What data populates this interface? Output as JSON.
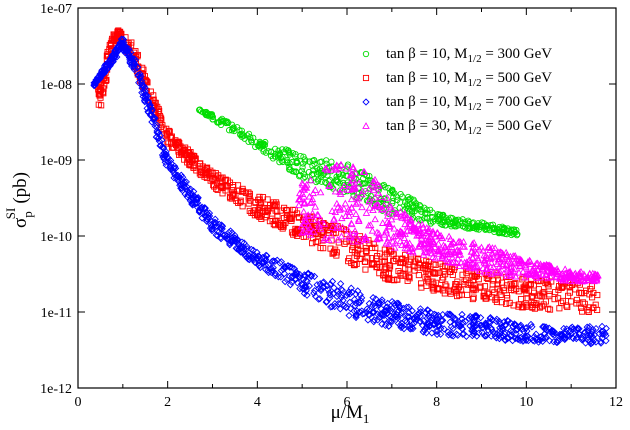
{
  "chart_data": {
    "type": "scatter",
    "xlabel": {
      "main": "μ/M",
      "sub": "1"
    },
    "ylabel": {
      "main": "σ",
      "sup": "SI",
      "sub": "p",
      "unit": "(pb)"
    },
    "xlim": [
      0,
      12
    ],
    "ylim_log10": [
      -12,
      -7
    ],
    "x_ticks": [
      0,
      2,
      4,
      6,
      8,
      10,
      12
    ],
    "y_ticks": [
      {
        "label": "1e-12",
        "exp": -12
      },
      {
        "label": "1e-11",
        "exp": -11
      },
      {
        "label": "1e-10",
        "exp": -10
      },
      {
        "label": "1e-09",
        "exp": -9
      },
      {
        "label": "1e-08",
        "exp": -8
      },
      {
        "label": "1e-07",
        "exp": -7
      }
    ],
    "legend_position": "top-right",
    "series": [
      {
        "name": "tan β = 10,  M",
        "name_sub": "1/2",
        "name_rest": " = 300 GeV",
        "marker": "circle",
        "color": "#00dd00",
        "x_range": [
          2.7,
          9.8
        ],
        "band": [
          [
            2.7,
            -8.3,
            -8.35
          ],
          [
            4.0,
            -8.7,
            -8.85
          ],
          [
            5.0,
            -8.95,
            -9.25
          ],
          [
            6.0,
            -9.05,
            -9.45
          ],
          [
            7.0,
            -9.35,
            -9.75
          ],
          [
            8.0,
            -9.7,
            -9.85
          ],
          [
            9.0,
            -9.82,
            -9.93
          ],
          [
            9.8,
            -9.92,
            -10.0
          ]
        ],
        "count": 480,
        "seed": 11
      },
      {
        "name": "tan β = 10,  M",
        "name_sub": "1/2",
        "name_rest": " = 500 GeV",
        "marker": "square",
        "color": "#ff0000",
        "x_range": [
          0.45,
          11.6
        ],
        "band": [
          [
            0.45,
            -8.0,
            -8.5
          ],
          [
            0.8,
            -7.3,
            -7.45
          ],
          [
            1.0,
            -7.28,
            -7.45
          ],
          [
            1.3,
            -7.55,
            -7.85
          ],
          [
            2.0,
            -8.6,
            -8.8
          ],
          [
            3.0,
            -9.15,
            -9.35
          ],
          [
            4.0,
            -9.45,
            -9.75
          ],
          [
            5.0,
            -9.7,
            -10.05
          ],
          [
            6.0,
            -9.9,
            -10.35
          ],
          [
            7.0,
            -10.2,
            -10.6
          ],
          [
            8.0,
            -10.35,
            -10.75
          ],
          [
            9.0,
            -10.45,
            -10.85
          ],
          [
            10.0,
            -10.55,
            -10.95
          ],
          [
            11.0,
            -10.6,
            -11.0
          ],
          [
            11.6,
            -10.65,
            -11.0
          ]
        ],
        "count": 900,
        "seed": 23
      },
      {
        "name": "tan β = 10,  M",
        "name_sub": "1/2",
        "name_rest": " = 700 GeV",
        "marker": "diamond",
        "color": "#0000ff",
        "x_range": [
          0.35,
          11.8
        ],
        "band": [
          [
            0.35,
            -7.98,
            -8.05
          ],
          [
            0.6,
            -7.75,
            -7.85
          ],
          [
            1.0,
            -7.38,
            -7.55
          ],
          [
            1.3,
            -7.7,
            -7.9
          ],
          [
            2.0,
            -8.95,
            -9.15
          ],
          [
            3.0,
            -9.75,
            -9.95
          ],
          [
            4.0,
            -10.2,
            -10.4
          ],
          [
            5.0,
            -10.45,
            -10.75
          ],
          [
            6.0,
            -10.65,
            -11.05
          ],
          [
            7.0,
            -10.85,
            -11.2
          ],
          [
            8.0,
            -11.0,
            -11.3
          ],
          [
            9.0,
            -11.05,
            -11.35
          ],
          [
            10.0,
            -11.15,
            -11.4
          ],
          [
            11.0,
            -11.2,
            -11.4
          ],
          [
            11.8,
            -11.15,
            -11.45
          ]
        ],
        "count": 1000,
        "seed": 37
      },
      {
        "name": "tan β = 30,  M",
        "name_sub": "1/2",
        "name_rest": " = 500 GeV",
        "marker": "triangle",
        "color": "#ff00ff",
        "x_range": [
          4.9,
          11.6
        ],
        "band": [
          [
            4.9,
            -9.3,
            -10.0
          ],
          [
            5.5,
            -9.05,
            -10.05
          ],
          [
            6.0,
            -9.05,
            -10.1
          ],
          [
            6.5,
            -9.1,
            -10.05
          ],
          [
            7.0,
            -9.6,
            -10.2
          ],
          [
            8.0,
            -9.95,
            -10.3
          ],
          [
            9.0,
            -10.1,
            -10.5
          ],
          [
            10.0,
            -10.3,
            -10.55
          ],
          [
            11.0,
            -10.45,
            -10.6
          ],
          [
            11.6,
            -10.5,
            -10.6
          ]
        ],
        "count": 650,
        "seed": 51
      }
    ]
  }
}
